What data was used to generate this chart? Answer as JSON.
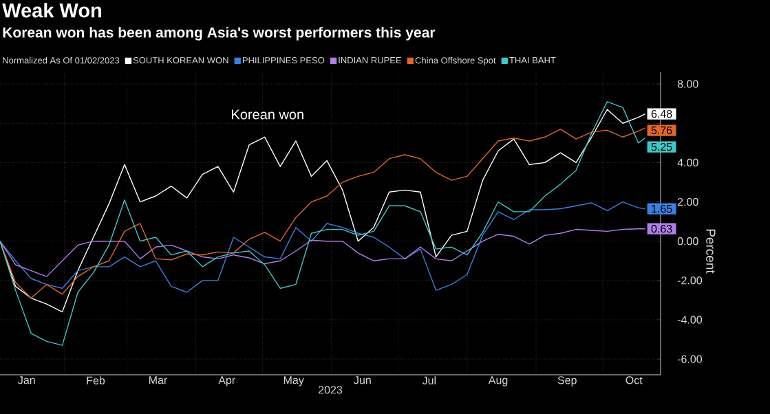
{
  "chart_data": {
    "type": "line",
    "title": "Weak Won",
    "subtitle": "Korean won has been among Asia's worst performers this year",
    "legend_title": "Normalized As Of 01/02/2023",
    "xlabel": "2023",
    "ylabel": "Percent",
    "legend": "top",
    "grid": true,
    "marker": "none",
    "line_style": "solid",
    "x": [
      "2023-01-03",
      "2023-01-10",
      "2023-01-17",
      "2023-01-24",
      "2023-01-31",
      "2023-02-07",
      "2023-02-14",
      "2023-02-21",
      "2023-02-28",
      "2023-03-07",
      "2023-03-14",
      "2023-03-21",
      "2023-03-28",
      "2023-04-04",
      "2023-04-11",
      "2023-04-18",
      "2023-04-25",
      "2023-05-02",
      "2023-05-09",
      "2023-05-16",
      "2023-05-23",
      "2023-05-30",
      "2023-06-06",
      "2023-06-13",
      "2023-06-20",
      "2023-06-27",
      "2023-07-04",
      "2023-07-11",
      "2023-07-18",
      "2023-07-25",
      "2023-08-01",
      "2023-08-08",
      "2023-08-15",
      "2023-08-22",
      "2023-08-29",
      "2023-09-05",
      "2023-09-12",
      "2023-09-19",
      "2023-09-26",
      "2023-10-03",
      "2023-10-10",
      "2023-10-17",
      "2023-10-20"
    ],
    "series": [
      {
        "name": "SOUTH KOREAN WON",
        "color": "#ffffff",
        "values": [
          0,
          -2.3,
          -2.9,
          -3.2,
          -3.6,
          -1.5,
          0.2,
          1.9,
          3.9,
          2.0,
          2.3,
          2.8,
          2.2,
          3.4,
          3.8,
          2.5,
          4.9,
          5.3,
          3.8,
          5.1,
          3.3,
          4.1,
          2.6,
          0.0,
          0.7,
          2.5,
          2.6,
          2.5,
          -0.8,
          0.3,
          0.5,
          3.1,
          4.6,
          5.2,
          3.9,
          4.0,
          4.5,
          4.0,
          5.3,
          6.7,
          6.0,
          6.3,
          6.48
        ],
        "value_labels": [
          null,
          null,
          null,
          null,
          null,
          null,
          null,
          null,
          null,
          null,
          null,
          null,
          null,
          null,
          null,
          null,
          null,
          null,
          null,
          null,
          null,
          null,
          null,
          null,
          null,
          null,
          null,
          null,
          null,
          null,
          null,
          null,
          null,
          null,
          null,
          null,
          null,
          null,
          null,
          null,
          null,
          null,
          "6.48"
        ]
      },
      {
        "name": "PHILIPPINES PESO",
        "color": "#3d7fe0",
        "values": [
          0,
          -1.0,
          -1.9,
          -2.2,
          -2.4,
          -1.5,
          -1.3,
          -1.3,
          -0.8,
          -1.3,
          -1.0,
          -2.3,
          -2.6,
          -2.0,
          -2.0,
          0.2,
          -0.3,
          -0.8,
          -0.9,
          0.7,
          0.0,
          0.9,
          0.7,
          0.4,
          0.2,
          -0.3,
          -0.9,
          -0.4,
          -2.5,
          -2.2,
          -1.7,
          0.3,
          1.5,
          1.1,
          1.6,
          1.6,
          1.65,
          1.8,
          1.95,
          1.55,
          2.0,
          1.7,
          1.65
        ],
        "value_labels": [
          null,
          null,
          null,
          null,
          null,
          null,
          null,
          null,
          null,
          null,
          null,
          null,
          null,
          null,
          null,
          null,
          null,
          null,
          null,
          null,
          null,
          null,
          null,
          null,
          null,
          null,
          null,
          null,
          null,
          null,
          null,
          null,
          null,
          null,
          null,
          null,
          null,
          null,
          null,
          null,
          null,
          null,
          "1.65"
        ]
      },
      {
        "name": "INDIAN RUPEE",
        "color": "#b07ee8",
        "values": [
          0,
          -1.2,
          -1.5,
          -1.8,
          -1.0,
          -0.2,
          0.0,
          0.0,
          0.0,
          -0.9,
          -0.3,
          -0.2,
          -0.5,
          -0.8,
          -0.9,
          -0.7,
          -0.85,
          -1.15,
          -1.0,
          -0.5,
          0.05,
          0.0,
          0.0,
          -0.6,
          -1.0,
          -0.9,
          -0.9,
          -0.3,
          -0.9,
          -1.0,
          -0.5,
          0.0,
          0.35,
          0.25,
          -0.15,
          0.3,
          0.4,
          0.6,
          0.55,
          0.5,
          0.6,
          0.63,
          0.63
        ],
        "value_labels": [
          null,
          null,
          null,
          null,
          null,
          null,
          null,
          null,
          null,
          null,
          null,
          null,
          null,
          null,
          null,
          null,
          null,
          null,
          null,
          null,
          null,
          null,
          null,
          null,
          null,
          null,
          null,
          null,
          null,
          null,
          null,
          null,
          null,
          null,
          null,
          null,
          null,
          null,
          null,
          null,
          null,
          null,
          "0.63"
        ]
      },
      {
        "name": "China Offshore Spot",
        "color": "#e0662a",
        "values": [
          0,
          -2.1,
          -2.9,
          -2.2,
          -2.7,
          -1.8,
          -1.3,
          -1.0,
          0.5,
          0.9,
          -0.9,
          -0.95,
          -0.65,
          -0.7,
          -0.55,
          -0.6,
          0.1,
          0.45,
          0.0,
          1.2,
          2.0,
          2.3,
          3.0,
          3.3,
          3.5,
          4.2,
          4.4,
          4.2,
          3.5,
          3.1,
          3.3,
          4.2,
          5.1,
          5.25,
          5.1,
          5.3,
          5.7,
          5.2,
          5.55,
          5.65,
          5.3,
          5.6,
          5.76
        ],
        "value_labels": [
          null,
          null,
          null,
          null,
          null,
          null,
          null,
          null,
          null,
          null,
          null,
          null,
          null,
          null,
          null,
          null,
          null,
          null,
          null,
          null,
          null,
          null,
          null,
          null,
          null,
          null,
          null,
          null,
          null,
          null,
          null,
          null,
          null,
          null,
          null,
          null,
          null,
          null,
          null,
          null,
          null,
          null,
          "5.76"
        ]
      },
      {
        "name": "THAI BAHT",
        "color": "#3fc7c7",
        "values": [
          0,
          -2.5,
          -4.7,
          -5.1,
          -5.3,
          -2.6,
          -1.6,
          -0.2,
          2.1,
          0.0,
          0.2,
          -0.7,
          -0.5,
          -1.3,
          -0.8,
          -0.6,
          -0.5,
          -1.2,
          -2.4,
          -2.2,
          0.4,
          0.6,
          0.6,
          0.3,
          0.5,
          1.8,
          1.8,
          1.5,
          -0.4,
          -0.3,
          -0.7,
          0.45,
          2.0,
          1.5,
          1.5,
          2.3,
          2.9,
          3.6,
          5.5,
          7.1,
          6.8,
          5.0,
          5.25
        ],
        "value_labels": [
          null,
          null,
          null,
          null,
          null,
          null,
          null,
          null,
          null,
          null,
          null,
          null,
          null,
          null,
          null,
          null,
          null,
          null,
          null,
          null,
          null,
          null,
          null,
          null,
          null,
          null,
          null,
          null,
          null,
          null,
          null,
          null,
          null,
          null,
          null,
          null,
          null,
          null,
          null,
          null,
          null,
          null,
          "5.25"
        ]
      }
    ],
    "xlim": [
      "2023-01-03",
      "2023-10-27"
    ],
    "xticks": [
      {
        "value": "2023-01-15",
        "label": "Jan"
      },
      {
        "value": "2023-02-15",
        "label": "Feb"
      },
      {
        "value": "2023-03-15",
        "label": "Mar"
      },
      {
        "value": "2023-04-15",
        "label": "Apr"
      },
      {
        "value": "2023-05-15",
        "label": "May"
      },
      {
        "value": "2023-06-15",
        "label": "Jun"
      },
      {
        "value": "2023-07-15",
        "label": "Jul"
      },
      {
        "value": "2023-08-15",
        "label": "Aug"
      },
      {
        "value": "2023-09-15",
        "label": "Sep"
      },
      {
        "value": "2023-10-15",
        "label": "Oct"
      },
      {
        "value": "2023-02-01",
        "label": null
      },
      {
        "value": "2023-03-01",
        "label": null
      },
      {
        "value": "2023-04-01",
        "label": null
      },
      {
        "value": "2023-05-01",
        "label": null
      },
      {
        "value": "2023-06-01",
        "label": null
      },
      {
        "value": "2023-07-01",
        "label": null
      },
      {
        "value": "2023-08-01",
        "label": null
      },
      {
        "value": "2023-09-01",
        "label": null
      },
      {
        "value": "2023-10-01",
        "label": null
      }
    ],
    "ylim": [
      -6.8,
      8.6
    ],
    "yticks": [
      {
        "value": 8,
        "label": "8.00"
      },
      {
        "value": 6,
        "label": null
      },
      {
        "value": 4,
        "label": "4.00"
      },
      {
        "value": 2,
        "label": "2.00"
      },
      {
        "value": 0,
        "label": "0.00"
      },
      {
        "value": -2,
        "label": "-2.00"
      },
      {
        "value": -4,
        "label": "-4.00"
      },
      {
        "value": -6,
        "label": "-6.00"
      }
    ],
    "annotations": [
      "Korean won"
    ]
  }
}
